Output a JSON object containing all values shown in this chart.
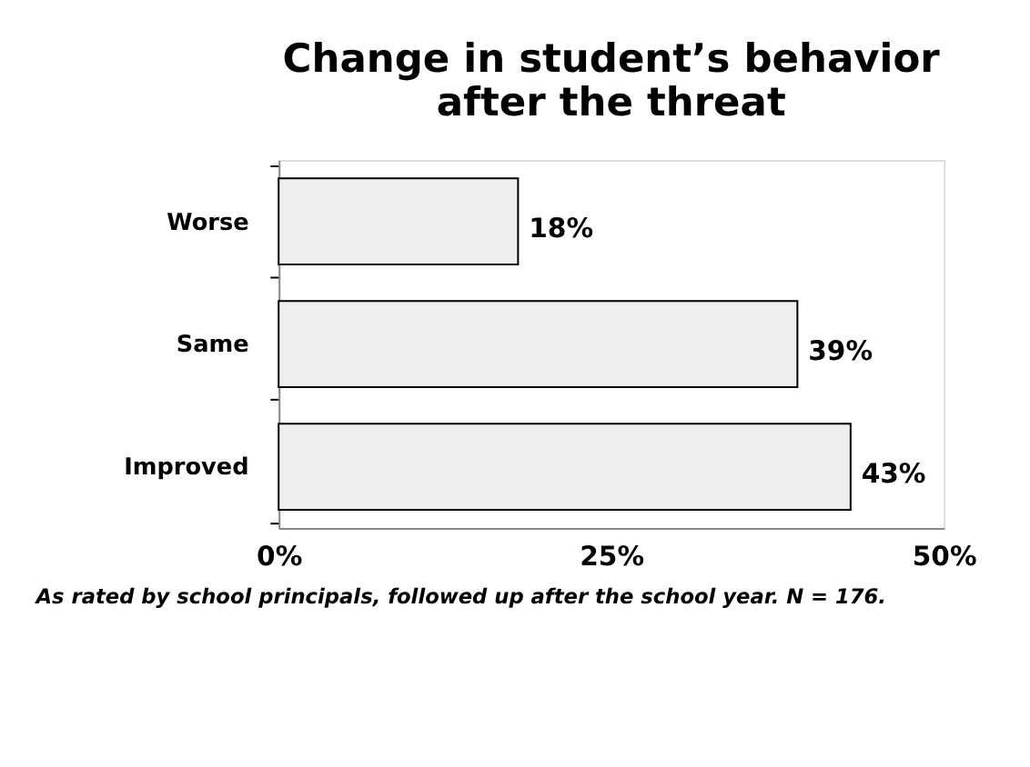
{
  "chart_data": {
    "type": "bar",
    "orientation": "horizontal",
    "title": [
      "Change in student’s behavior",
      "after the threat"
    ],
    "categories": [
      "Worse",
      "Same",
      "Improved"
    ],
    "values": [
      18,
      39,
      43
    ],
    "color": "#eeeeee",
    "value_labels": [
      "18%",
      "39%",
      "43%"
    ],
    "xlim": [
      0,
      50
    ],
    "xticks": [
      {
        "value": 0,
        "label": "0%"
      },
      {
        "value": 25,
        "label": "25%"
      },
      {
        "value": 50,
        "label": "50%"
      }
    ],
    "grid": false,
    "annotations": [
      "As rated by school principals, followed up after the school year. N = 176."
    ]
  }
}
